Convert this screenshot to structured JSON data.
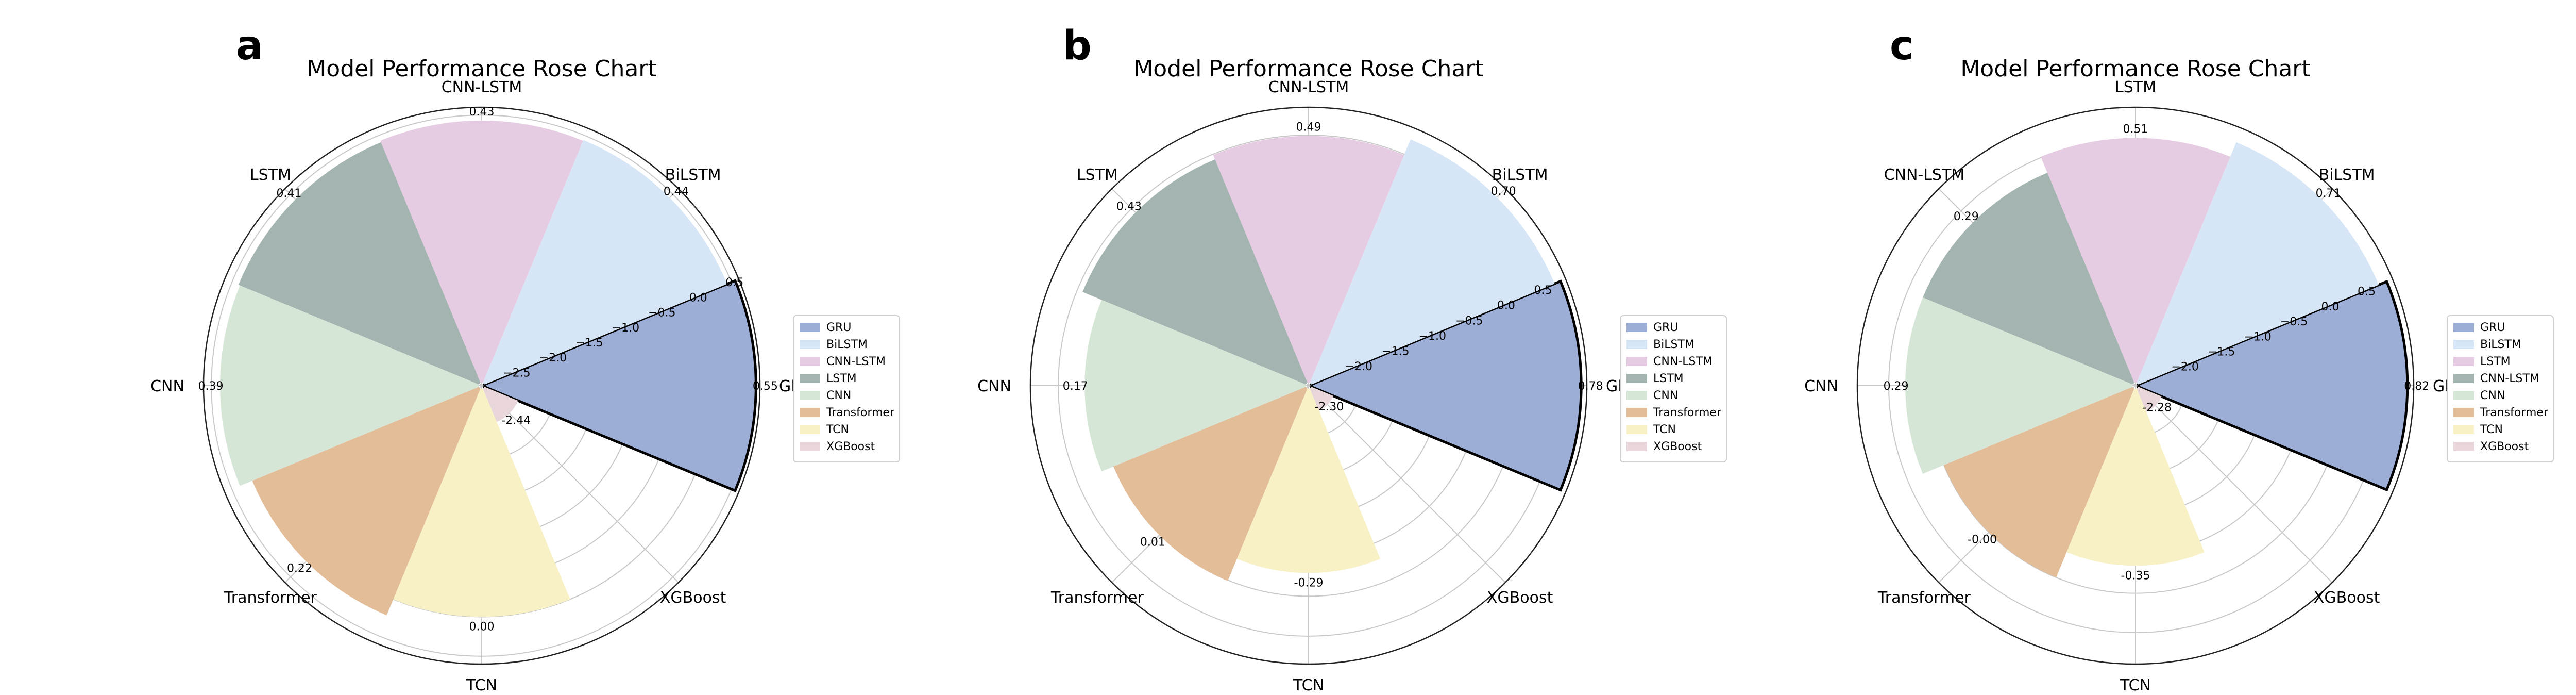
{
  "chart_data": [
    {
      "panel": "a",
      "type": "rose",
      "title": "Model Performance Rose Chart",
      "categories": [
        "GRU",
        "BiLSTM",
        "CNN-LSTM",
        "LSTM",
        "CNN",
        "Transformer",
        "TCN",
        "XGBoost"
      ],
      "values": [
        0.55,
        0.44,
        0.43,
        0.41,
        0.39,
        0.22,
        0.0,
        -2.44
      ],
      "value_labels": [
        "0.55",
        "0.44",
        "0.43",
        "0.41",
        "0.39",
        "0.22",
        "0.00",
        "-2.44"
      ],
      "rlim": [
        -2.9,
        0.6
      ],
      "rticks": [
        -2.5,
        -2.0,
        -1.5,
        -1.0,
        -0.5,
        0.0,
        0.5
      ],
      "rtick_labels": [
        "−2.5",
        "−2.0",
        "−1.5",
        "−1.0",
        "−0.5",
        "0.0",
        "0.5"
      ],
      "colors": [
        "#9caed6",
        "#d6e6f6",
        "#e6cce2",
        "#a4b4b1",
        "#d6e6d6",
        "#e3bc98",
        "#f7f1c5",
        "#e8d6da"
      ],
      "highlight": "GRU",
      "grid": true,
      "legend_placement": "right",
      "legend": [
        "GRU",
        "BiLSTM",
        "CNN-LSTM",
        "LSTM",
        "CNN",
        "Transformer",
        "TCN",
        "XGBoost"
      ]
    },
    {
      "panel": "b",
      "type": "rose",
      "title": "Model Performance Rose Chart",
      "categories": [
        "GRU",
        "BiLSTM",
        "CNN-LSTM",
        "LSTM",
        "CNN",
        "Transformer",
        "TCN",
        "XGBoost"
      ],
      "values": [
        0.78,
        0.7,
        0.49,
        0.43,
        0.17,
        0.01,
        -0.29,
        -2.3
      ],
      "value_labels": [
        "0.78",
        "0.70",
        "0.49",
        "0.43",
        "0.17",
        "0.01",
        "-0.29",
        "-2.30"
      ],
      "rlim": [
        -2.6,
        0.85
      ],
      "rticks": [
        -2.0,
        -1.5,
        -1.0,
        -0.5,
        0.0,
        0.5
      ],
      "rtick_labels": [
        "−2.0",
        "−1.5",
        "−1.0",
        "−0.5",
        "0.0",
        "0.5"
      ],
      "colors": [
        "#9caed6",
        "#d6e6f6",
        "#e6cce2",
        "#a4b4b1",
        "#d6e6d6",
        "#e3bc98",
        "#f7f1c5",
        "#e8d6da"
      ],
      "highlight": "GRU",
      "grid": true,
      "legend_placement": "right",
      "legend": [
        "GRU",
        "BiLSTM",
        "CNN-LSTM",
        "LSTM",
        "CNN",
        "Transformer",
        "TCN",
        "XGBoost"
      ]
    },
    {
      "panel": "c",
      "type": "rose",
      "title": "Model Performance Rose Chart",
      "categories": [
        "GRU",
        "BiLSTM",
        "LSTM",
        "CNN-LSTM",
        "CNN",
        "Transformer",
        "TCN",
        "XGBoost"
      ],
      "values": [
        0.82,
        0.71,
        0.51,
        0.29,
        0.29,
        -0.0,
        -0.35,
        -2.28
      ],
      "value_labels": [
        "0.82",
        "0.71",
        "0.51",
        "0.29",
        "0.29",
        "-0.00",
        "-0.35",
        "-2.28"
      ],
      "rlim": [
        -2.6,
        0.9
      ],
      "rticks": [
        -2.0,
        -1.5,
        -1.0,
        -0.5,
        0.0,
        0.5
      ],
      "rtick_labels": [
        "−2.0",
        "−1.5",
        "−1.0",
        "−0.5",
        "0.0",
        "0.5"
      ],
      "colors": [
        "#9caed6",
        "#d6e6f6",
        "#e6cce2",
        "#a4b4b1",
        "#d6e6d6",
        "#e3bc98",
        "#f7f1c5",
        "#e8d6da"
      ],
      "highlight": "GRU",
      "grid": true,
      "legend_placement": "right",
      "legend": [
        "GRU",
        "BiLSTM",
        "LSTM",
        "CNN-LSTM",
        "CNN",
        "Transformer",
        "TCN",
        "XGBoost"
      ]
    }
  ]
}
